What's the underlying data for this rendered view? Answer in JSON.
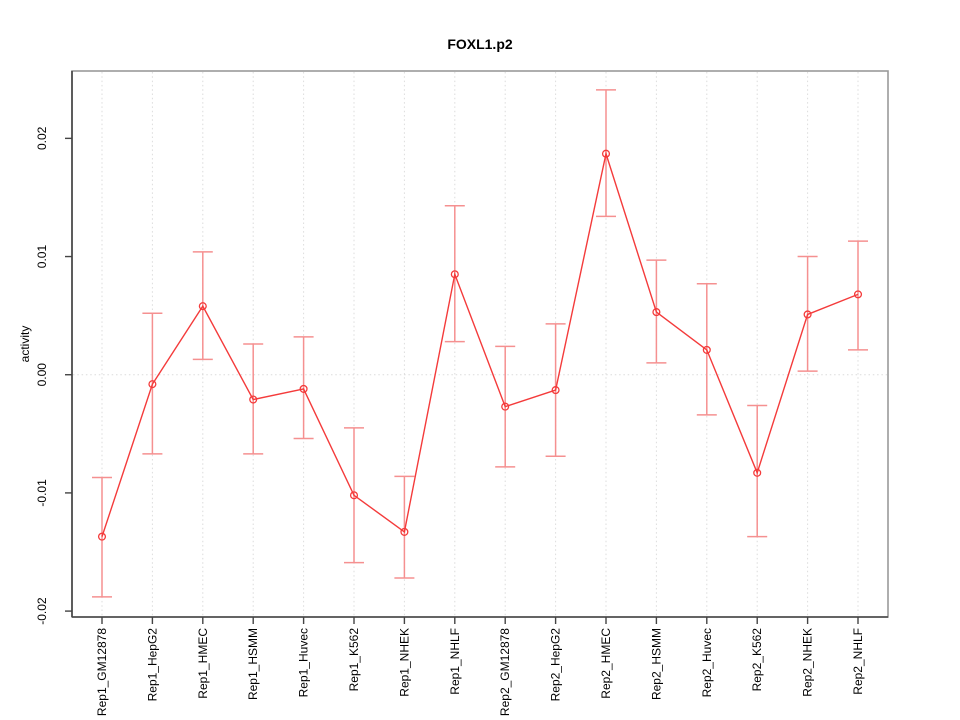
{
  "title": "FOXL1.p2",
  "chart_data": {
    "type": "line",
    "title": "FOXL1.p2",
    "ylabel": "activity",
    "xlabel": "",
    "categories": [
      "Rep1_GM12878",
      "Rep1_HepG2",
      "Rep1_HMEC",
      "Rep1_HSMM",
      "Rep1_Huvec",
      "Rep1_K562",
      "Rep1_NHEK",
      "Rep1_NHLF",
      "Rep2_GM12878",
      "Rep2_HepG2",
      "Rep2_HMEC",
      "Rep2_HSMM",
      "Rep2_Huvec",
      "Rep2_K562",
      "Rep2_NHEK",
      "Rep2_NHLF"
    ],
    "series": [
      {
        "name": "activity",
        "marker": "open-circle",
        "color": "#f43b3b",
        "values": [
          -0.0137,
          -0.0008,
          0.0058,
          -0.0021,
          -0.0012,
          -0.0102,
          -0.0133,
          0.0085,
          -0.0027,
          -0.0013,
          0.0187,
          0.0053,
          0.0021,
          -0.0083,
          0.0051,
          0.0068
        ],
        "error_low": [
          -0.0188,
          -0.0067,
          0.0013,
          -0.0067,
          -0.0054,
          -0.0159,
          -0.0172,
          0.0028,
          -0.0078,
          -0.0069,
          0.0134,
          0.001,
          -0.0034,
          -0.0137,
          0.0003,
          0.0021
        ],
        "error_high": [
          -0.0087,
          0.0052,
          0.0104,
          0.0026,
          0.0032,
          -0.0045,
          -0.0086,
          0.0143,
          0.0024,
          0.0043,
          0.0241,
          0.0097,
          0.0077,
          -0.0026,
          0.01,
          0.0113
        ]
      }
    ],
    "yticks": {
      "values": [
        0.02,
        0.01,
        0,
        -0.01,
        -0.02
      ],
      "labels": [
        "0.02",
        "0.01",
        "0.00",
        "-0.01",
        "-0.02"
      ]
    },
    "ylim": [
      -0.0205,
      0.0257
    ],
    "hlines": [
      0
    ],
    "grid": {
      "vertical_at_categories": true,
      "horizontal_at_zero": true,
      "style": "dotted"
    },
    "legend": "none",
    "colors": {
      "errorbar": "#f59090",
      "grid": "#dcdcdc",
      "box": "#9a9a9a",
      "axis": "#444444",
      "tick": "#444444",
      "text": "#000000",
      "background": "#ffffff"
    }
  }
}
